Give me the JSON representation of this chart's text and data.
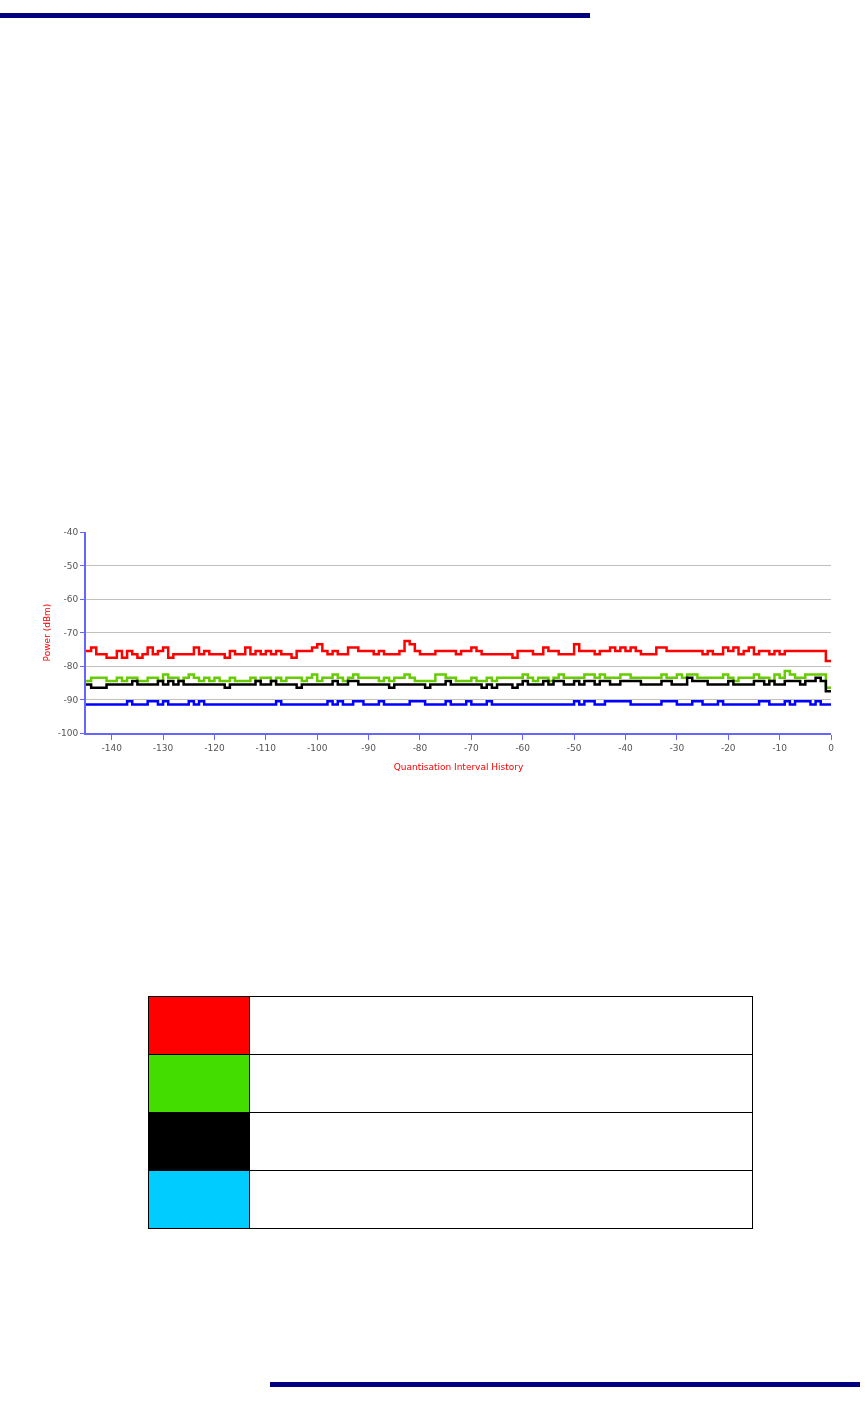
{
  "chart_data": {
    "type": "step",
    "xlabel": "Quantisation Interval History",
    "ylabel": "Power (dBm)",
    "xlim": [
      -145,
      0
    ],
    "xticks": [
      -140,
      -130,
      -120,
      -110,
      -100,
      -90,
      -80,
      -70,
      -60,
      -50,
      -40,
      -30,
      -20,
      -10,
      0
    ],
    "ylim": [
      -100,
      -40
    ],
    "yticks": [
      -100,
      -90,
      -80,
      -70,
      -60,
      -50,
      -40
    ],
    "grid": "y",
    "marker": "none",
    "line_style": "solid",
    "series": [
      {
        "color": "#ff0000",
        "x": [
          -145,
          -144,
          -143,
          -141,
          -139,
          -138,
          -137,
          -136,
          -135,
          -134,
          -133,
          -132,
          -131,
          -130,
          -129,
          -128,
          -124,
          -123,
          -122,
          -121,
          -118,
          -117,
          -116,
          -114,
          -113,
          -112,
          -111,
          -110,
          -109,
          -108,
          -107,
          -105,
          -104,
          -101,
          -100,
          -99,
          -98,
          -97,
          -96,
          -94,
          -92,
          -89,
          -88,
          -87,
          -84,
          -83,
          -82,
          -81,
          -80,
          -77,
          -73,
          -72,
          -70,
          -69,
          -68,
          -62,
          -61,
          -58,
          -56,
          -55,
          -53,
          -50,
          -49,
          -46,
          -45,
          -43,
          -42,
          -41,
          -40,
          -39,
          -38,
          -37,
          -34,
          -32,
          -25,
          -24,
          -23,
          -21,
          -20,
          -19,
          -18,
          -17,
          -16,
          -15,
          -14,
          -12,
          -11,
          -10,
          -9,
          -1,
          0
        ],
        "values": [
          -75.5,
          -74.5,
          -76.5,
          -77.5,
          -75.5,
          -77.5,
          -75.5,
          -76.5,
          -77.5,
          -76.5,
          -74.5,
          -76.5,
          -75.5,
          -74.5,
          -77.5,
          -76.5,
          -74.5,
          -76.5,
          -75.5,
          -76.5,
          -77.5,
          -75.5,
          -76.5,
          -74.5,
          -76.5,
          -75.5,
          -76.5,
          -75.5,
          -76.5,
          -75.5,
          -76.5,
          -77.5,
          -75.5,
          -74.5,
          -73.5,
          -75.5,
          -76.5,
          -75.5,
          -76.5,
          -74.5,
          -75.5,
          -76.5,
          -75.5,
          -76.5,
          -75.5,
          -72.5,
          -73.5,
          -75.5,
          -76.5,
          -75.5,
          -76.5,
          -75.5,
          -74.5,
          -75.5,
          -76.5,
          -77.5,
          -75.5,
          -76.5,
          -74.5,
          -75.5,
          -76.5,
          -73.5,
          -75.5,
          -76.5,
          -75.5,
          -74.5,
          -75.5,
          -74.5,
          -75.5,
          -74.5,
          -75.5,
          -76.5,
          -74.5,
          -75.5,
          -76.5,
          -75.5,
          -76.5,
          -74.5,
          -75.5,
          -74.5,
          -76.5,
          -75.5,
          -74.5,
          -76.5,
          -75.5,
          -76.5,
          -75.5,
          -76.5,
          -75.5,
          -78.5,
          -78.5
        ]
      },
      {
        "color": "#66cc00",
        "x": [
          -145,
          -144,
          -141,
          -139,
          -138,
          -137,
          -135,
          -133,
          -131,
          -130,
          -129,
          -127,
          -126,
          -125,
          -124,
          -123,
          -122,
          -121,
          -120,
          -119,
          -117,
          -116,
          -113,
          -112,
          -111,
          -109,
          -108,
          -107,
          -106,
          -103,
          -102,
          -101,
          -100,
          -99,
          -97,
          -96,
          -95,
          -94,
          -93,
          -92,
          -91,
          -88,
          -87,
          -86,
          -85,
          -83,
          -82,
          -81,
          -77,
          -76,
          -75,
          -73,
          -70,
          -69,
          -67,
          -66,
          -65,
          -60,
          -59,
          -58,
          -57,
          -55,
          -54,
          -53,
          -52,
          -48,
          -46,
          -45,
          -44,
          -41,
          -39,
          -33,
          -32,
          -30,
          -29,
          -28,
          -26,
          -21,
          -20,
          -19,
          -18,
          -15,
          -14,
          -12,
          -11,
          -10,
          -9,
          -8,
          -7,
          -5,
          -1,
          0
        ],
        "values": [
          -84.5,
          -83.5,
          -84.5,
          -83.5,
          -84.5,
          -83.5,
          -84.5,
          -83.5,
          -84.5,
          -82.5,
          -83.5,
          -84.5,
          -83.5,
          -82.5,
          -83.5,
          -84.5,
          -83.5,
          -84.5,
          -83.5,
          -84.5,
          -83.5,
          -84.5,
          -83.5,
          -84.5,
          -83.5,
          -84.5,
          -83.5,
          -84.5,
          -83.5,
          -84.5,
          -83.5,
          -82.5,
          -84.5,
          -83.5,
          -82.5,
          -83.5,
          -84.5,
          -83.5,
          -82.5,
          -83.5,
          -83.5,
          -84.5,
          -83.5,
          -84.5,
          -83.5,
          -82.5,
          -83.5,
          -84.5,
          -82.5,
          -82.5,
          -83.5,
          -84.5,
          -83.5,
          -84.5,
          -83.5,
          -84.5,
          -83.5,
          -82.5,
          -83.5,
          -84.5,
          -83.5,
          -84.5,
          -83.5,
          -82.5,
          -83.5,
          -82.5,
          -83.5,
          -82.5,
          -83.5,
          -82.5,
          -83.5,
          -82.5,
          -83.5,
          -82.5,
          -83.5,
          -82.5,
          -83.5,
          -82.5,
          -83.5,
          -84.5,
          -83.5,
          -82.5,
          -83.5,
          -84.5,
          -82.5,
          -83.5,
          -81.5,
          -82.5,
          -83.5,
          -82.5,
          -86.5,
          -86.5
        ]
      },
      {
        "color": "#000000",
        "x": [
          -145,
          -144,
          -141,
          -136,
          -135,
          -131,
          -130,
          -129,
          -128,
          -127,
          -126,
          -118,
          -117,
          -112,
          -111,
          -109,
          -108,
          -104,
          -103,
          -97,
          -96,
          -94,
          -92,
          -86,
          -85,
          -79,
          -78,
          -75,
          -74,
          -68,
          -67,
          -66,
          -65,
          -62,
          -61,
          -60,
          -59,
          -56,
          -55,
          -54,
          -52,
          -50,
          -49,
          -48,
          -46,
          -45,
          -43,
          -41,
          -37,
          -33,
          -31,
          -28,
          -27,
          -24,
          -20,
          -19,
          -15,
          -13,
          -12,
          -11,
          -9,
          -6,
          -5,
          -3,
          -2,
          -1,
          0
        ],
        "values": [
          -85.5,
          -86.5,
          -85.5,
          -84.5,
          -85.5,
          -84.5,
          -85.5,
          -84.5,
          -85.5,
          -84.5,
          -85.5,
          -86.5,
          -85.5,
          -84.5,
          -85.5,
          -84.5,
          -85.5,
          -86.5,
          -85.5,
          -84.5,
          -85.5,
          -84.5,
          -85.5,
          -86.5,
          -85.5,
          -86.5,
          -85.5,
          -84.5,
          -85.5,
          -86.5,
          -85.5,
          -86.5,
          -85.5,
          -86.5,
          -85.5,
          -84.5,
          -85.5,
          -84.5,
          -85.5,
          -84.5,
          -85.5,
          -84.5,
          -85.5,
          -84.5,
          -85.5,
          -84.5,
          -85.5,
          -84.5,
          -85.5,
          -84.5,
          -85.5,
          -83.5,
          -84.5,
          -85.5,
          -84.5,
          -85.5,
          -84.5,
          -85.5,
          -84.5,
          -85.5,
          -84.5,
          -85.5,
          -84.5,
          -83.5,
          -84.5,
          -87.5,
          -87.5
        ]
      },
      {
        "color": "#0000ff",
        "x": [
          -145,
          -137,
          -136,
          -133,
          -131,
          -130,
          -129,
          -125,
          -124,
          -123,
          -122,
          -108,
          -107,
          -98,
          -97,
          -96,
          -95,
          -93,
          -91,
          -88,
          -87,
          -82,
          -79,
          -75,
          -74,
          -71,
          -70,
          -67,
          -66,
          -50,
          -49,
          -48,
          -46,
          -44,
          -39,
          -33,
          -30,
          -27,
          -25,
          -22,
          -21,
          -14,
          -12,
          -9,
          -8,
          -7,
          -4,
          -3,
          -2,
          0
        ],
        "values": [
          -91.5,
          -90.5,
          -91.5,
          -90.5,
          -91.5,
          -90.5,
          -91.5,
          -90.5,
          -91.5,
          -90.5,
          -91.5,
          -90.5,
          -91.5,
          -90.5,
          -91.5,
          -90.5,
          -91.5,
          -90.5,
          -91.5,
          -90.5,
          -91.5,
          -90.5,
          -91.5,
          -90.5,
          -91.5,
          -90.5,
          -91.5,
          -90.5,
          -91.5,
          -90.5,
          -91.5,
          -90.5,
          -91.5,
          -90.5,
          -91.5,
          -90.5,
          -91.5,
          -90.5,
          -91.5,
          -90.5,
          -91.5,
          -90.5,
          -91.5,
          -90.5,
          -91.5,
          -90.5,
          -91.5,
          -90.5,
          -91.5,
          -91.5
        ]
      }
    ]
  }
}
